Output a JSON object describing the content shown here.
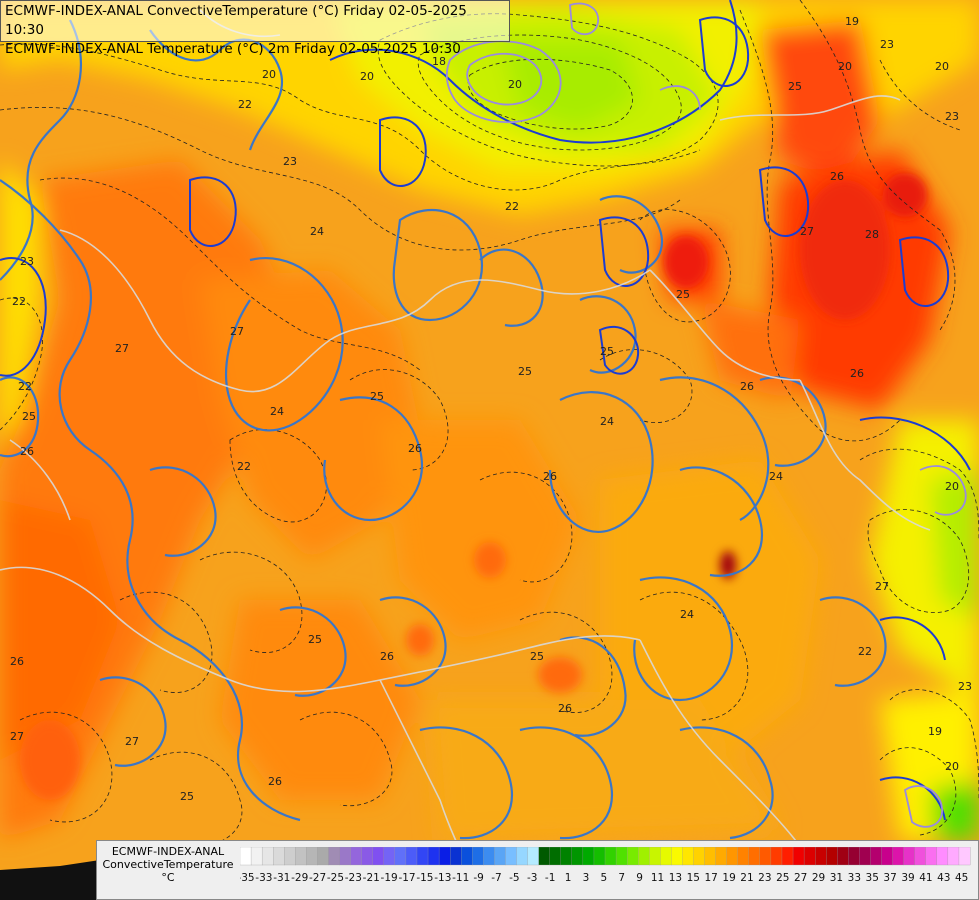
{
  "titles": [
    "ECMWF-INDEX-ANAL ConvectiveTemperature (°C) Friday 02-05-2025 10:30",
    "ECMWF-INDEX-ANAL Temperature (°C) 2m Friday 02-05-2025 10:30"
  ],
  "legend": {
    "line1": "ECMWF-INDEX-ANAL",
    "line2": "ConvectiveTemperature",
    "unit": "°C",
    "colors": [
      "#ffffff",
      "#f2f2f2",
      "#e6e6e6",
      "#dadada",
      "#cecece",
      "#c2c2c2",
      "#b6b6b6",
      "#aaaaaa",
      "#a08cb4",
      "#9a78c8",
      "#9466dc",
      "#8a5ae6",
      "#8050f0",
      "#7464f5",
      "#6070f8",
      "#4c5cf8",
      "#3246f5",
      "#1e32f0",
      "#0a1ee6",
      "#0a32d2",
      "#0a50dc",
      "#1e6ee6",
      "#3c8cf0",
      "#5aa5f5",
      "#78beff",
      "#96d7ff",
      "#b4ebff",
      "#005a00",
      "#006e00",
      "#008200",
      "#009600",
      "#00aa00",
      "#14be00",
      "#32d200",
      "#50e100",
      "#78eb00",
      "#a0f000",
      "#c8f500",
      "#e6fa00",
      "#fafa00",
      "#ffe600",
      "#ffd200",
      "#ffbe00",
      "#ffaa00",
      "#ff9600",
      "#ff8200",
      "#ff6e00",
      "#ff5a00",
      "#ff3c00",
      "#ff1e00",
      "#f00000",
      "#dc0000",
      "#c80000",
      "#b40000",
      "#a00014",
      "#960032",
      "#a00050",
      "#b4006e",
      "#c8008c",
      "#dc14aa",
      "#e632c8",
      "#f050dc",
      "#fa6ef0",
      "#ff8cff",
      "#ffaaff",
      "#ffc8ff"
    ],
    "ticks": [
      "-35",
      "-33",
      "-31",
      "-29",
      "-27",
      "-25",
      "-23",
      "-21",
      "-19",
      "-17",
      "-15",
      "-13",
      "-11",
      "-9",
      "-7",
      "-5",
      "-3",
      "-1",
      "1",
      "3",
      "5",
      "7",
      "9",
      "11",
      "13",
      "15",
      "17",
      "19",
      "21",
      "23",
      "25",
      "27",
      "29",
      "31",
      "33",
      "35",
      "37",
      "39",
      "41",
      "43",
      "45"
    ]
  },
  "map": {
    "contour_labels": [
      {
        "t": "20"
      },
      {
        "t": "22"
      },
      {
        "t": "23"
      },
      {
        "t": "24"
      },
      {
        "t": "25"
      },
      {
        "t": "26"
      },
      {
        "t": "27"
      },
      {
        "t": "28"
      },
      {
        "t": "19"
      },
      {
        "t": "18"
      }
    ]
  }
}
